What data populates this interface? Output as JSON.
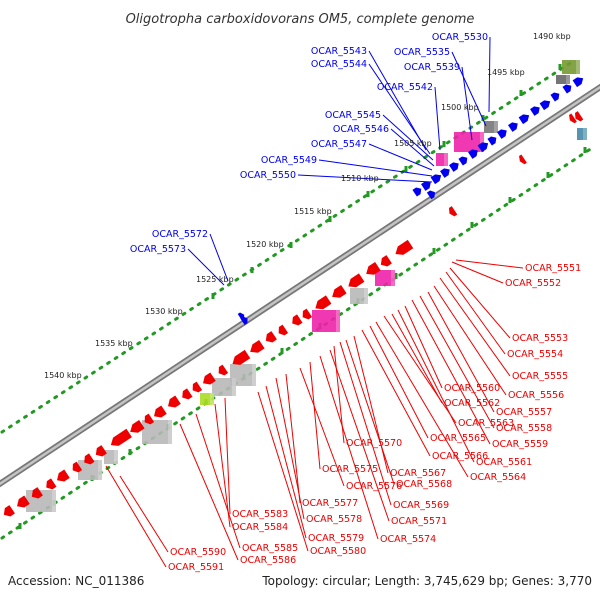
{
  "header": {
    "title": "Oligotropha carboxidovorans OM5, complete genome"
  },
  "footer": {
    "accession": "Accession: NC_011386",
    "topology": "Topology: circular; Length: 3,745,629 bp; Genes: 3,770"
  },
  "colors": {
    "forward_strand": "#0000ee",
    "reverse_strand": "#ee0000",
    "highlight_pink": "#ee22aa",
    "highlight_gray": "#b8b8b8",
    "highlight_olive": "#779933",
    "highlight_lime": "#aadd22",
    "highlight_steel": "#4488aa",
    "tick_green": "#229922",
    "backbone": "#888888"
  },
  "scale_labels": [
    "1490 kbp",
    "1495 kbp",
    "1500 kbp",
    "1505 kbp",
    "1510 kbp",
    "1515 kbp",
    "1520 kbp",
    "1525 kbp",
    "1530 kbp",
    "1535 kbp",
    "1540 kbp"
  ],
  "forward_genes": [
    "OCAR_5530",
    "OCAR_5535",
    "OCAR_5539",
    "OCAR_5542",
    "OCAR_5543",
    "OCAR_5544",
    "OCAR_5545",
    "OCAR_5546",
    "OCAR_5547",
    "OCAR_5549",
    "OCAR_5550",
    "OCAR_5572",
    "OCAR_5573"
  ],
  "reverse_genes": [
    "OCAR_5551",
    "OCAR_5552",
    "OCAR_5553",
    "OCAR_5554",
    "OCAR_5555",
    "OCAR_5556",
    "OCAR_5557",
    "OCAR_5558",
    "OCAR_5559",
    "OCAR_5560",
    "OCAR_5561",
    "OCAR_5562",
    "OCAR_5563",
    "OCAR_5564",
    "OCAR_5565",
    "OCAR_5566",
    "OCAR_5567",
    "OCAR_5568",
    "OCAR_5569",
    "OCAR_5570",
    "OCAR_5571",
    "OCAR_5574",
    "OCAR_5575",
    "OCAR_5576",
    "OCAR_5577",
    "OCAR_5578",
    "OCAR_5579",
    "OCAR_5580",
    "OCAR_5583",
    "OCAR_5584",
    "OCAR_5585",
    "OCAR_5586",
    "OCAR_5590",
    "OCAR_5591"
  ]
}
